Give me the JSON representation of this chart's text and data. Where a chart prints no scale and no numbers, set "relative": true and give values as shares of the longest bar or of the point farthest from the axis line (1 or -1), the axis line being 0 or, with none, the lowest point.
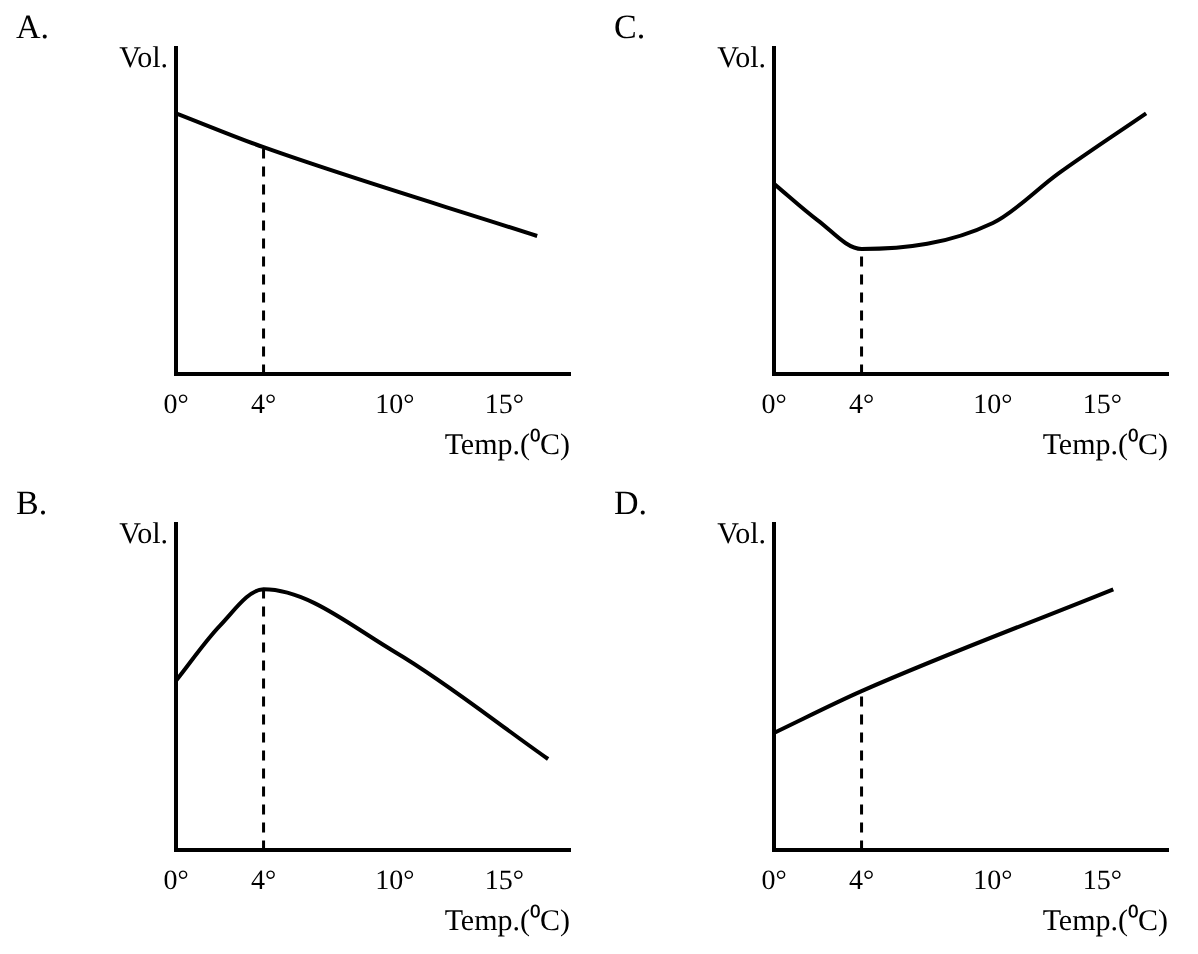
{
  "chart_data": [
    {
      "type": "line",
      "title": "A.",
      "ylabel": "Vol.",
      "xlabel": "Temp.(⁰C)",
      "relative": true,
      "x": [
        0,
        4,
        16.5
      ],
      "series": [
        {
          "color": "#000000",
          "values": [
            1,
            0.87,
            0.53
          ]
        }
      ],
      "xlim": [
        0,
        18
      ],
      "xticks": [
        {
          "value": 0,
          "label": "0°"
        },
        {
          "value": 4,
          "label": "4°"
        },
        {
          "value": 10,
          "label": "10°"
        },
        {
          "value": 15,
          "label": "15°"
        }
      ],
      "ref_lines": [
        {
          "axis": "x",
          "value": 4,
          "line_style": "dashed"
        }
      ],
      "grid": false,
      "legend": false,
      "marker": "none"
    },
    {
      "type": "line",
      "title": "C.",
      "ylabel": "Vol.",
      "xlabel": "Temp.(⁰C)",
      "relative": true,
      "x": [
        0,
        2,
        4,
        10,
        13,
        17
      ],
      "series": [
        {
          "color": "#000000",
          "values": [
            0.73,
            0.59,
            0.48,
            0.58,
            0.77,
            1
          ]
        }
      ],
      "xlim": [
        0,
        18
      ],
      "xticks": [
        {
          "value": 0,
          "label": "0°"
        },
        {
          "value": 4,
          "label": "4°"
        },
        {
          "value": 10,
          "label": "10°"
        },
        {
          "value": 15,
          "label": "15°"
        }
      ],
      "ref_lines": [
        {
          "axis": "x",
          "value": 4,
          "line_style": "dashed"
        }
      ],
      "grid": false,
      "legend": false,
      "marker": "none"
    },
    {
      "type": "line",
      "title": "B.",
      "ylabel": "Vol.",
      "xlabel": "Temp.(⁰C)",
      "relative": true,
      "x": [
        0,
        2,
        4,
        10,
        17
      ],
      "series": [
        {
          "color": "#000000",
          "values": [
            0.65,
            0.86,
            1,
            0.76,
            0.35
          ]
        }
      ],
      "xlim": [
        0,
        18
      ],
      "xticks": [
        {
          "value": 0,
          "label": "0°"
        },
        {
          "value": 4,
          "label": "4°"
        },
        {
          "value": 10,
          "label": "10°"
        },
        {
          "value": 15,
          "label": "15°"
        }
      ],
      "ref_lines": [
        {
          "axis": "x",
          "value": 4,
          "line_style": "dashed"
        }
      ],
      "grid": false,
      "legend": false,
      "marker": "none"
    },
    {
      "type": "line",
      "title": "D.",
      "ylabel": "Vol.",
      "xlabel": "Temp.(⁰C)",
      "relative": true,
      "x": [
        0,
        4,
        15.5
      ],
      "series": [
        {
          "color": "#000000",
          "values": [
            0.45,
            0.61,
            1
          ]
        }
      ],
      "xlim": [
        0,
        18
      ],
      "xticks": [
        {
          "value": 0,
          "label": "0°"
        },
        {
          "value": 4,
          "label": "4°"
        },
        {
          "value": 10,
          "label": "10°"
        },
        {
          "value": 15,
          "label": "15°"
        }
      ],
      "ref_lines": [
        {
          "axis": "x",
          "value": 4,
          "line_style": "dashed"
        }
      ],
      "grid": false,
      "legend": false,
      "marker": "none"
    }
  ]
}
